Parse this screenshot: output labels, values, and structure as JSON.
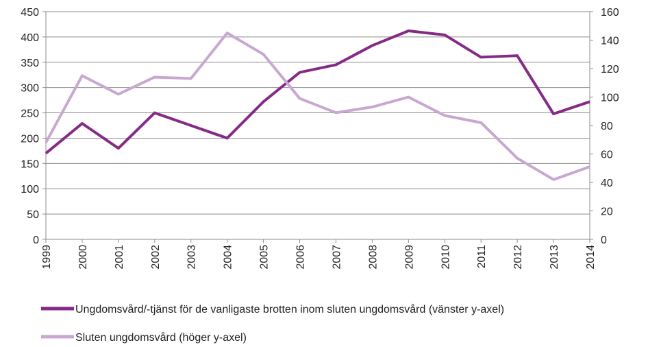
{
  "chart_data": {
    "type": "line",
    "categories": [
      "1999",
      "2000",
      "2001",
      "2002",
      "2003",
      "2004",
      "2005",
      "2006",
      "2007",
      "2008",
      "2009",
      "2010",
      "2011",
      "2012",
      "2013",
      "2014"
    ],
    "series": [
      {
        "name": "Ungdomsvård/-tjänst för de vanligaste brotten inom sluten ungdomsvård (vänster y-axel)",
        "color": "#862a87",
        "axis": "y",
        "values": [
          170,
          229,
          180,
          250,
          225,
          200,
          272,
          330,
          345,
          383,
          412,
          404,
          360,
          363,
          248,
          272
        ]
      },
      {
        "name": "Sluten ungdomsvård (höger y-axel)",
        "color": "#c8a8d0",
        "axis": "y2",
        "values": [
          68,
          115,
          102,
          114,
          113,
          145,
          130,
          99,
          89,
          93,
          100,
          87,
          82,
          57,
          42,
          51
        ]
      }
    ],
    "ylim": [
      0,
      450
    ],
    "yticks": [
      0,
      50,
      100,
      150,
      200,
      250,
      300,
      350,
      400,
      450
    ],
    "y2lim": [
      0,
      160
    ],
    "y2ticks": [
      0,
      20,
      40,
      60,
      80,
      100,
      120,
      140,
      160
    ],
    "grid": true,
    "legend": "bottom"
  }
}
